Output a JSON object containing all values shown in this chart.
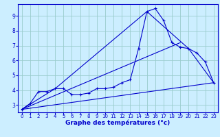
{
  "xlabel": "Graphe des températures (°c)",
  "background_color": "#cceeff",
  "grid_color": "#99cccc",
  "line_color": "#0000cc",
  "axis_color": "#0000cc",
  "xlim": [
    -0.5,
    23.5
  ],
  "ylim": [
    2.5,
    9.8
  ],
  "xticks": [
    0,
    1,
    2,
    3,
    4,
    5,
    6,
    7,
    8,
    9,
    10,
    11,
    12,
    13,
    14,
    15,
    16,
    17,
    18,
    19,
    20,
    21,
    22,
    23
  ],
  "yticks": [
    3,
    4,
    5,
    6,
    7,
    8,
    9
  ],
  "curve_main_x": [
    0,
    1,
    2,
    3,
    4,
    5,
    6,
    7,
    8,
    9,
    10,
    11,
    12,
    13,
    14,
    15,
    16,
    17,
    18,
    19,
    20,
    21,
    22,
    23
  ],
  "curve_main_y": [
    2.7,
    3.1,
    3.9,
    3.9,
    4.1,
    4.1,
    3.7,
    3.7,
    3.8,
    4.1,
    4.1,
    4.2,
    4.5,
    4.7,
    6.8,
    9.3,
    9.5,
    8.7,
    7.2,
    6.9,
    6.8,
    6.5,
    5.9,
    4.5
  ],
  "line1_x": [
    0,
    23
  ],
  "line1_y": [
    2.7,
    4.5
  ],
  "line2_x": [
    0,
    19
  ],
  "line2_y": [
    2.7,
    7.2
  ],
  "curve_env_x": [
    0,
    4,
    15,
    20,
    23
  ],
  "curve_env_y": [
    2.7,
    4.1,
    9.3,
    6.8,
    4.5
  ]
}
